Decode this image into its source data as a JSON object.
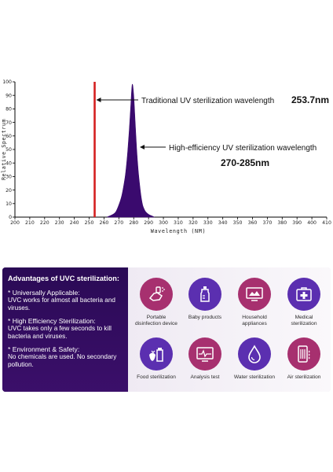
{
  "chart_data": {
    "type": "area",
    "xlabel": "Wavelength (NM)",
    "ylabel": "Relative Spectrum",
    "xlim": [
      200,
      410
    ],
    "ylim": [
      0,
      100
    ],
    "x_ticks": [
      200,
      210,
      220,
      230,
      240,
      250,
      260,
      270,
      280,
      290,
      300,
      310,
      320,
      330,
      340,
      350,
      360,
      370,
      380,
      390,
      400,
      410
    ],
    "y_ticks": [
      0,
      10,
      20,
      30,
      40,
      50,
      60,
      70,
      80,
      90,
      100
    ],
    "series": [
      {
        "x": [
          262,
          266,
          268,
          270,
          272,
          274,
          275,
          276,
          277,
          278,
          279,
          280,
          281,
          282,
          283,
          284,
          285,
          286,
          287,
          288,
          290,
          292,
          294
        ],
        "y": [
          0,
          2,
          4,
          9,
          16,
          28,
          37,
          49,
          64,
          82,
          98,
          90,
          70,
          50,
          35,
          24,
          15,
          9,
          6,
          4,
          2,
          1,
          0
        ],
        "color": "#3a0a6e"
      }
    ],
    "vline": {
      "x": 253.7,
      "color": "#d42020"
    },
    "annotations": [
      {
        "text": "Traditional UV sterilization wavelength",
        "value": "253.7nm"
      },
      {
        "text": "High-efficiency UV sterilization wavelength",
        "value": "270-285nm"
      }
    ]
  },
  "panel": {
    "title": "Advantages of UVC sterilization:",
    "items": [
      {
        "head": "* Universally Applicable:",
        "text": "UVC works for almost all bacteria and viruses."
      },
      {
        "head": "* High Efficiency Sterilization:",
        "text": "UVC takes only a few seconds to kill bacteria and viruses."
      },
      {
        "head": "* Environment & Safety:",
        "text": "No chemicals are used. No secondary pollution."
      }
    ],
    "features": [
      {
        "label": "Portable\ndisinfection device",
        "icon": "hand-spray-icon",
        "color": "#a7306f"
      },
      {
        "label": "Baby products",
        "icon": "baby-bottle-icon",
        "color": "#5b2fb0"
      },
      {
        "label": "Household\nappliances",
        "icon": "tv-icon",
        "color": "#a7306f"
      },
      {
        "label": "Medical\nsterilization",
        "icon": "medical-kit-icon",
        "color": "#5b2fb0"
      },
      {
        "label": "Food sterilization",
        "icon": "food-icon",
        "color": "#5b2fb0"
      },
      {
        "label": "Analysis test",
        "icon": "monitor-chart-icon",
        "color": "#a7306f"
      },
      {
        "label": "Water sterilization",
        "icon": "water-drop-icon",
        "color": "#5b2fb0"
      },
      {
        "label": "Air sterilization",
        "icon": "air-purifier-icon",
        "color": "#a7306f"
      }
    ]
  }
}
